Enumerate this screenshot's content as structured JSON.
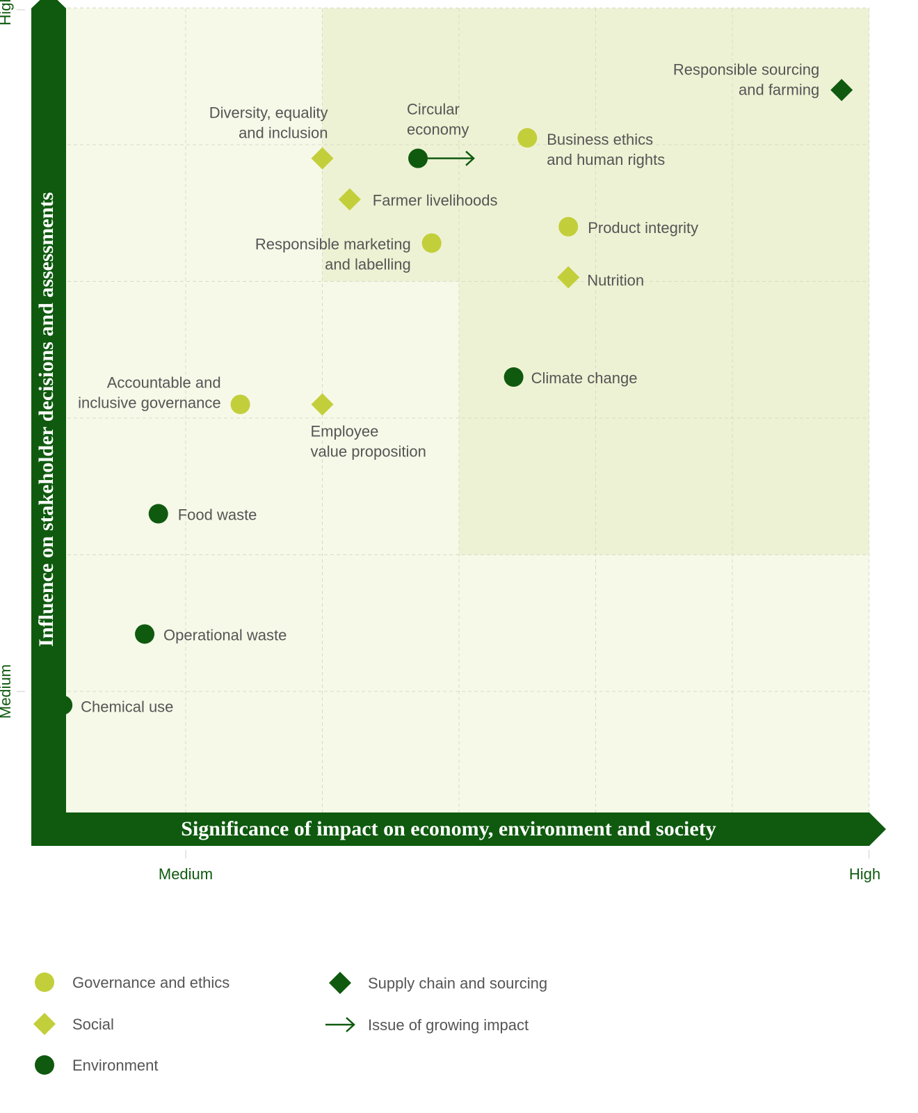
{
  "colors": {
    "governance": "#c2cf3a",
    "social": "#c2cf3a",
    "environment": "#0f5a0f",
    "supply_chain": "#0f5a0f",
    "axis": "#0f5a0f",
    "background": "#f6f9e8",
    "highlight": "#eef2d4",
    "grid": "#d6dbc4",
    "text": "#555555"
  },
  "chart_data": {
    "type": "scatter",
    "xlabel": "Significance of impact on economy, environment and society",
    "ylabel": "Influence on stakeholder decisions and assessments",
    "x_ticks": [
      {
        "value": 1,
        "label": "Medium"
      },
      {
        "value": 6,
        "label": "High"
      }
    ],
    "y_ticks": [
      {
        "value": 1,
        "label": "Medium"
      },
      {
        "value": 6,
        "label": "High"
      }
    ],
    "xlim": [
      0,
      6
    ],
    "ylim": [
      0.2,
      6.1
    ],
    "grid": true,
    "highlight_region": {
      "x_threshold": 3,
      "y_threshold": 4
    },
    "categories": [
      {
        "key": "governance",
        "name": "Governance and ethics",
        "shape": "circle"
      },
      {
        "key": "social",
        "name": "Social",
        "shape": "diamond"
      },
      {
        "key": "environment",
        "name": "Environment",
        "shape": "circle"
      },
      {
        "key": "supply_chain",
        "name": "Supply chain and sourcing",
        "shape": "diamond"
      },
      {
        "key": "growing",
        "name": "Issue of growing impact",
        "shape": "arrow"
      }
    ],
    "points": [
      {
        "label": "Responsible sourcing\nand farming",
        "x": 5.8,
        "y": 5.4,
        "category": "supply_chain"
      },
      {
        "label": "Diversity, equality\nand inclusion",
        "x": 2.0,
        "y": 4.9,
        "category": "social"
      },
      {
        "label": "Circular\neconomy",
        "x": 2.7,
        "y": 4.9,
        "category": "environment",
        "growing": true
      },
      {
        "label": "Business ethics\nand human rights",
        "x": 3.5,
        "y": 5.05,
        "category": "governance"
      },
      {
        "label": "Farmer livelihoods",
        "x": 2.2,
        "y": 4.6,
        "category": "social"
      },
      {
        "label": "Product integrity",
        "x": 3.8,
        "y": 4.4,
        "category": "governance"
      },
      {
        "label": "Responsible marketing\nand labelling",
        "x": 2.8,
        "y": 4.28,
        "category": "governance"
      },
      {
        "label": "Nutrition",
        "x": 3.8,
        "y": 4.03,
        "category": "social"
      },
      {
        "label": "Climate change",
        "x": 3.4,
        "y": 3.3,
        "category": "environment"
      },
      {
        "label": "Accountable and\ninclusive governance",
        "x": 1.4,
        "y": 3.1,
        "category": "governance"
      },
      {
        "label": "Employee\nvalue proposition",
        "x": 2.0,
        "y": 3.1,
        "category": "social"
      },
      {
        "label": "Food waste",
        "x": 0.8,
        "y": 2.3,
        "category": "environment"
      },
      {
        "label": "Operational waste",
        "x": 0.7,
        "y": 1.42,
        "category": "environment"
      },
      {
        "label": "Chemical use",
        "x": 0.1,
        "y": 0.9,
        "category": "environment"
      }
    ]
  }
}
